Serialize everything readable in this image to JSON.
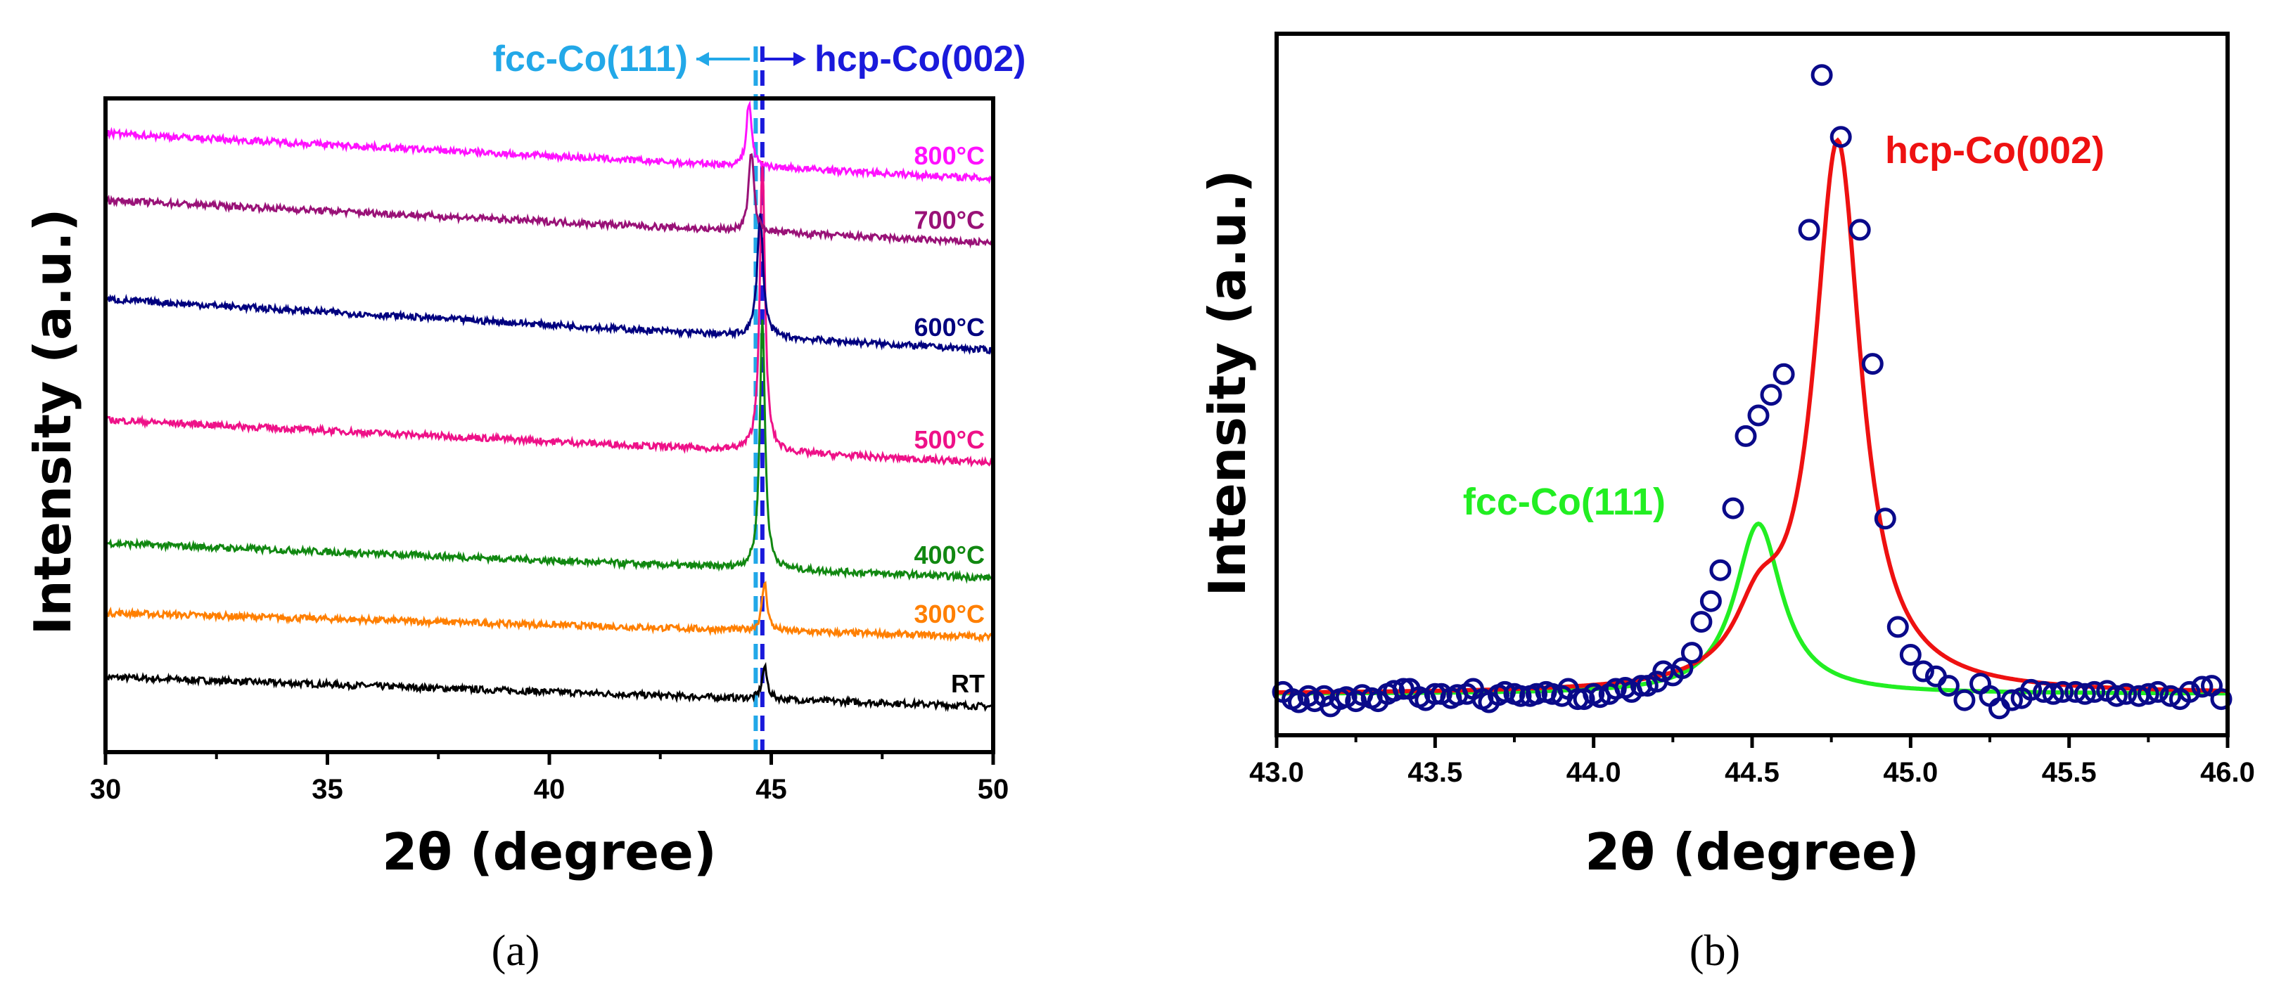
{
  "chart_data": [
    {
      "type": "line",
      "panel": "(a)",
      "xlabel": "2θ (degree)",
      "ylabel": "Intensity (a.u.)",
      "xlim": [
        30,
        50
      ],
      "xticks": [
        "30",
        "35",
        "40",
        "45",
        "50"
      ],
      "xtick_values": [
        30,
        35,
        40,
        45,
        50
      ],
      "series": [
        {
          "name": "RT",
          "color": "#000000",
          "start": 1.0,
          "end": 0.45,
          "peak_pos": 44.85,
          "peak_h": 0.6,
          "peak_w": 0.07
        },
        {
          "name": "300°C",
          "color": "#ff7f00",
          "start": 2.2,
          "end": 1.75,
          "peak_pos": 44.85,
          "peak_h": 0.9,
          "peak_w": 0.07
        },
        {
          "name": "400°C",
          "color": "#118811",
          "start": 3.5,
          "end": 2.85,
          "peak_pos": 44.8,
          "peak_h": 4.7,
          "peak_w": 0.07
        },
        {
          "name": "500°C",
          "color": "#ee1188",
          "start": 5.8,
          "end": 5.0,
          "peak_pos": 44.8,
          "peak_h": 5.4,
          "peak_w": 0.07
        },
        {
          "name": "600°C",
          "color": "#00007f",
          "start": 8.05,
          "end": 7.1,
          "peak_pos": 44.75,
          "peak_h": 2.3,
          "peak_w": 0.08
        },
        {
          "name": "700°C",
          "color": "#991177",
          "start": 9.9,
          "end": 9.1,
          "peak_pos": 44.55,
          "peak_h": 1.5,
          "peak_w": 0.07
        },
        {
          "name": "800°C",
          "color": "#ff11ff",
          "start": 11.15,
          "end": 10.3,
          "peak_pos": 44.5,
          "peak_h": 1.2,
          "peak_w": 0.07
        }
      ],
      "reference_lines": [
        {
          "name": "fcc-Co(111)",
          "x": 44.65,
          "color": "#22a8e8"
        },
        {
          "name": "hcp-Co(002)",
          "x": 44.8,
          "color": "#1a1adb"
        }
      ]
    },
    {
      "type": "scatter",
      "panel": "(b)",
      "xlabel": "2θ (degree)",
      "ylabel": "Intensity (a.u.)",
      "xlim": [
        43.0,
        46.0
      ],
      "xticks": [
        "43.0",
        "43.5",
        "44.0",
        "44.5",
        "45.0",
        "45.5",
        "46.0"
      ],
      "xtick_values": [
        43.0,
        43.5,
        44.0,
        44.5,
        45.0,
        45.5,
        46.0
      ],
      "ylim": [
        -0.3,
        6.5
      ],
      "baseline": 0.1,
      "points": [
        {
          "x": 43.02,
          "y": 0.12
        },
        {
          "x": 43.05,
          "y": 0.05
        },
        {
          "x": 43.07,
          "y": 0.02
        },
        {
          "x": 43.1,
          "y": 0.08
        },
        {
          "x": 43.12,
          "y": 0.03
        },
        {
          "x": 43.15,
          "y": 0.08
        },
        {
          "x": 43.17,
          "y": -0.02
        },
        {
          "x": 43.2,
          "y": 0.05
        },
        {
          "x": 43.22,
          "y": 0.07
        },
        {
          "x": 43.25,
          "y": 0.03
        },
        {
          "x": 43.27,
          "y": 0.09
        },
        {
          "x": 43.3,
          "y": 0.06
        },
        {
          "x": 43.32,
          "y": 0.03
        },
        {
          "x": 43.35,
          "y": 0.1
        },
        {
          "x": 43.37,
          "y": 0.13
        },
        {
          "x": 43.4,
          "y": 0.15
        },
        {
          "x": 43.42,
          "y": 0.15
        },
        {
          "x": 43.45,
          "y": 0.07
        },
        {
          "x": 43.47,
          "y": 0.04
        },
        {
          "x": 43.5,
          "y": 0.1
        },
        {
          "x": 43.52,
          "y": 0.1
        },
        {
          "x": 43.55,
          "y": 0.06
        },
        {
          "x": 43.57,
          "y": 0.09
        },
        {
          "x": 43.6,
          "y": 0.1
        },
        {
          "x": 43.62,
          "y": 0.15
        },
        {
          "x": 43.65,
          "y": 0.05
        },
        {
          "x": 43.67,
          "y": 0.02
        },
        {
          "x": 43.7,
          "y": 0.09
        },
        {
          "x": 43.72,
          "y": 0.12
        },
        {
          "x": 43.75,
          "y": 0.1
        },
        {
          "x": 43.77,
          "y": 0.08
        },
        {
          "x": 43.8,
          "y": 0.08
        },
        {
          "x": 43.82,
          "y": 0.1
        },
        {
          "x": 43.85,
          "y": 0.12
        },
        {
          "x": 43.87,
          "y": 0.1
        },
        {
          "x": 43.9,
          "y": 0.08
        },
        {
          "x": 43.92,
          "y": 0.15
        },
        {
          "x": 43.95,
          "y": 0.05
        },
        {
          "x": 43.97,
          "y": 0.05
        },
        {
          "x": 44.0,
          "y": 0.1
        },
        {
          "x": 44.02,
          "y": 0.07
        },
        {
          "x": 44.05,
          "y": 0.1
        },
        {
          "x": 44.07,
          "y": 0.15
        },
        {
          "x": 44.1,
          "y": 0.16
        },
        {
          "x": 44.12,
          "y": 0.12
        },
        {
          "x": 44.15,
          "y": 0.18
        },
        {
          "x": 44.17,
          "y": 0.18
        },
        {
          "x": 44.2,
          "y": 0.22
        },
        {
          "x": 44.22,
          "y": 0.32
        },
        {
          "x": 44.25,
          "y": 0.28
        },
        {
          "x": 44.28,
          "y": 0.35
        },
        {
          "x": 44.31,
          "y": 0.5
        },
        {
          "x": 44.34,
          "y": 0.8
        },
        {
          "x": 44.37,
          "y": 1.0
        },
        {
          "x": 44.4,
          "y": 1.3
        },
        {
          "x": 44.44,
          "y": 1.9
        },
        {
          "x": 44.48,
          "y": 2.6
        },
        {
          "x": 44.52,
          "y": 2.8
        },
        {
          "x": 44.56,
          "y": 3.0
        },
        {
          "x": 44.6,
          "y": 3.2
        },
        {
          "x": 44.68,
          "y": 4.6
        },
        {
          "x": 44.72,
          "y": 6.1
        },
        {
          "x": 44.78,
          "y": 5.5
        },
        {
          "x": 44.84,
          "y": 4.6
        },
        {
          "x": 44.88,
          "y": 3.3
        },
        {
          "x": 44.92,
          "y": 1.8
        },
        {
          "x": 44.96,
          "y": 0.75
        },
        {
          "x": 45.0,
          "y": 0.48
        },
        {
          "x": 45.04,
          "y": 0.32
        },
        {
          "x": 45.08,
          "y": 0.27
        },
        {
          "x": 45.12,
          "y": 0.18
        },
        {
          "x": 45.17,
          "y": 0.04
        },
        {
          "x": 45.22,
          "y": 0.2
        },
        {
          "x": 45.25,
          "y": 0.08
        },
        {
          "x": 45.28,
          "y": -0.04
        },
        {
          "x": 45.32,
          "y": 0.04
        },
        {
          "x": 45.35,
          "y": 0.06
        },
        {
          "x": 45.38,
          "y": 0.14
        },
        {
          "x": 45.42,
          "y": 0.12
        },
        {
          "x": 45.45,
          "y": 0.1
        },
        {
          "x": 45.48,
          "y": 0.12
        },
        {
          "x": 45.52,
          "y": 0.12
        },
        {
          "x": 45.55,
          "y": 0.1
        },
        {
          "x": 45.58,
          "y": 0.12
        },
        {
          "x": 45.62,
          "y": 0.13
        },
        {
          "x": 45.65,
          "y": 0.08
        },
        {
          "x": 45.68,
          "y": 0.1
        },
        {
          "x": 45.72,
          "y": 0.08
        },
        {
          "x": 45.75,
          "y": 0.1
        },
        {
          "x": 45.78,
          "y": 0.12
        },
        {
          "x": 45.82,
          "y": 0.08
        },
        {
          "x": 45.85,
          "y": 0.05
        },
        {
          "x": 45.88,
          "y": 0.12
        },
        {
          "x": 45.92,
          "y": 0.17
        },
        {
          "x": 45.95,
          "y": 0.18
        },
        {
          "x": 45.98,
          "y": 0.05
        }
      ],
      "fits": [
        {
          "name": "fcc-Co(111)",
          "color": "#22ee22",
          "center": 44.52,
          "height": 1.65,
          "hwhm": 0.09
        },
        {
          "name": "hcp-Co(002)",
          "color": "#ee1111",
          "center": 44.77,
          "height": 5.3,
          "hwhm": 0.09
        }
      ],
      "marker_color": "#0a0a8a"
    }
  ],
  "captions": {
    "a": "(a)",
    "b": "(b)"
  }
}
